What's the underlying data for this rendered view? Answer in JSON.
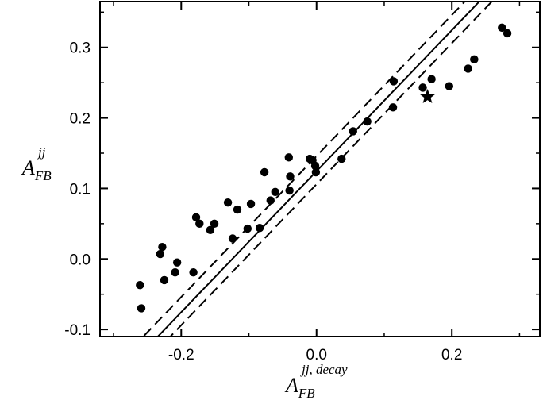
{
  "chart_data": {
    "type": "scatter",
    "title": "",
    "xlabel": {
      "main": "A",
      "sub": "FB",
      "sup": "jj, decay"
    },
    "ylabel": {
      "main": "A",
      "sub": "FB",
      "sup": "jj"
    },
    "xlim": [
      -0.32,
      0.33
    ],
    "ylim": [
      -0.11,
      0.365
    ],
    "x_ticks": [
      -0.2,
      0.0,
      0.2
    ],
    "x_tick_labels": [
      "-0.2",
      "0.0",
      "0.2"
    ],
    "y_ticks": [
      -0.1,
      0.0,
      0.1,
      0.2,
      0.3
    ],
    "y_tick_labels": [
      "-0.1",
      "0.0",
      "0.1",
      "0.2",
      "0.3"
    ],
    "grid": false,
    "fit_line": {
      "slope": 1.0,
      "intercept": 0.1245,
      "style": "solid"
    },
    "band_lines": [
      {
        "slope": 1.0,
        "intercept": 0.146,
        "style": "dashed"
      },
      {
        "slope": 1.0,
        "intercept": 0.106,
        "style": "dashed"
      }
    ],
    "series": [
      {
        "marker": "circle",
        "points": [
          [
            -0.261,
            -0.037
          ],
          [
            -0.259,
            -0.07
          ],
          [
            -0.231,
            0.007
          ],
          [
            -0.228,
            0.017
          ],
          [
            -0.225,
            -0.03
          ],
          [
            -0.209,
            -0.019
          ],
          [
            -0.206,
            -0.005
          ],
          [
            -0.182,
            -0.019
          ],
          [
            -0.178,
            0.059
          ],
          [
            -0.173,
            0.05
          ],
          [
            -0.157,
            0.041
          ],
          [
            -0.151,
            0.05
          ],
          [
            -0.131,
            0.08
          ],
          [
            -0.124,
            0.029
          ],
          [
            -0.117,
            0.07
          ],
          [
            -0.102,
            0.043
          ],
          [
            -0.097,
            0.078
          ],
          [
            -0.084,
            0.044
          ],
          [
            -0.077,
            0.123
          ],
          [
            -0.068,
            0.083
          ],
          [
            -0.061,
            0.095
          ],
          [
            -0.041,
            0.144
          ],
          [
            -0.04,
            0.097
          ],
          [
            -0.039,
            0.117
          ],
          [
            -0.01,
            0.142
          ],
          [
            -0.006,
            0.14
          ],
          [
            -0.002,
            0.132
          ],
          [
            -0.001,
            0.123
          ],
          [
            0.037,
            0.142
          ],
          [
            0.054,
            0.181
          ],
          [
            0.075,
            0.195
          ],
          [
            0.113,
            0.215
          ],
          [
            0.114,
            0.252
          ],
          [
            0.157,
            0.243
          ],
          [
            0.17,
            0.255
          ],
          [
            0.196,
            0.245
          ],
          [
            0.224,
            0.27
          ],
          [
            0.233,
            0.283
          ],
          [
            0.274,
            0.328
          ],
          [
            0.282,
            0.32
          ]
        ]
      },
      {
        "marker": "star",
        "points": [
          [
            0.164,
            0.23
          ]
        ]
      }
    ]
  }
}
